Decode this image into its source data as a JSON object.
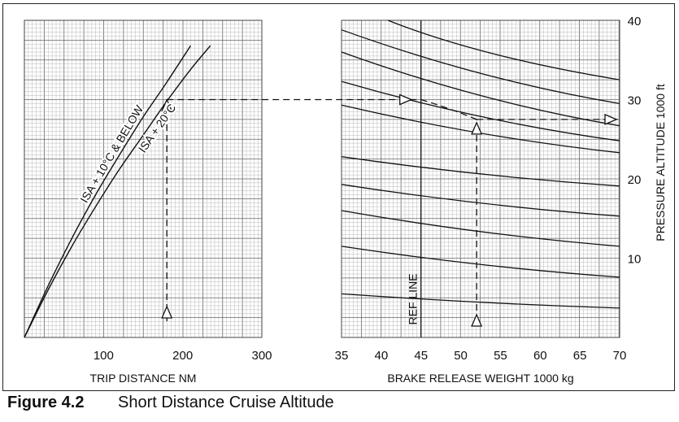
{
  "figure": {
    "label": "Figure 4.2",
    "title": "Short Distance Cruise Altitude"
  },
  "chart_data": [
    {
      "type": "line",
      "xlabel": "TRIP DISTANCE  NM",
      "xlim": [
        0,
        300
      ],
      "ylim": [
        0,
        40
      ],
      "xticks": [
        "100",
        "200",
        "300"
      ],
      "grid": true,
      "series": [
        {
          "name": "ISA + 10°C & BELOW",
          "x": [
            0,
            30,
            60,
            90,
            120,
            150,
            180,
            210
          ],
          "y": [
            0,
            6.5,
            12.5,
            18,
            23,
            27.8,
            32.2,
            36.8
          ]
        },
        {
          "name": "ISA + 20°C",
          "x": [
            0,
            30,
            60,
            90,
            120,
            150,
            180,
            210,
            235
          ],
          "y": [
            0,
            6,
            11.5,
            16.5,
            21.2,
            25.5,
            29.8,
            33.8,
            36.8
          ]
        }
      ]
    },
    {
      "type": "line",
      "xlabel": "BRAKE RELEASE WEIGHT   1000 kg",
      "ylabel": "PRESSURE ALTITUDE   1000 ft",
      "xlim": [
        35,
        70
      ],
      "ylim": [
        0,
        40
      ],
      "xticks": [
        "35",
        "40",
        "45",
        "50",
        "55",
        "60",
        "65",
        "70"
      ],
      "yticks": [
        "10",
        "20",
        "30",
        "40"
      ],
      "grid": true,
      "ref_line": {
        "label": "REF LINE",
        "x": 45
      },
      "series": [
        {
          "x": [
            35,
            70
          ],
          "y": [
            5.5,
            3.7
          ]
        },
        {
          "x": [
            35,
            70
          ],
          "y": [
            11.5,
            7.6
          ]
        },
        {
          "x": [
            35,
            70
          ],
          "y": [
            16,
            11.5
          ]
        },
        {
          "x": [
            35,
            70
          ],
          "y": [
            19.3,
            15.3
          ]
        },
        {
          "x": [
            35,
            70
          ],
          "y": [
            22.8,
            19.1
          ]
        },
        {
          "x": [
            35,
            70
          ],
          "y": [
            29.3,
            23.3
          ]
        },
        {
          "x": [
            35,
            70
          ],
          "y": [
            32.3,
            24.8
          ]
        },
        {
          "x": [
            35,
            70
          ],
          "y": [
            36,
            26.7
          ]
        },
        {
          "x": [
            35,
            70
          ],
          "y": [
            38.8,
            29.5
          ]
        },
        {
          "x": [
            35,
            70
          ],
          "y": [
            41.5,
            32.5
          ]
        }
      ]
    }
  ],
  "example": {
    "distance": 180,
    "altitude": 30,
    "weight": 52,
    "result_altitude": 27.5
  }
}
